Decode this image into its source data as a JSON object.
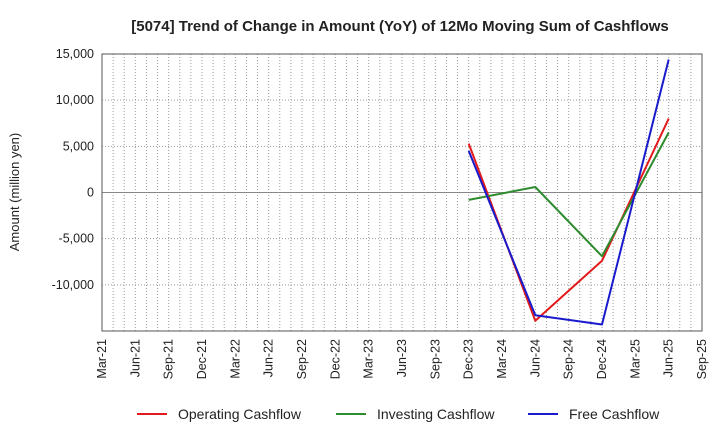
{
  "chart_data": {
    "type": "line",
    "title": "[5074]  Trend of Change in Amount (YoY) of 12Mo Moving Sum of Cashflows",
    "xlabel": "",
    "ylabel": "Amount (million yen)",
    "ylim": [
      -15000,
      15000
    ],
    "yticks": [
      15000,
      10000,
      5000,
      0,
      -5000,
      -10000
    ],
    "ytick_labels": [
      "15,000",
      "10,000",
      "5,000",
      "0",
      "-5,000",
      "-10,000"
    ],
    "categories": [
      "Mar-21",
      "Jun-21",
      "Sep-21",
      "Dec-21",
      "Mar-22",
      "Jun-22",
      "Sep-22",
      "Dec-22",
      "Mar-23",
      "Jun-23",
      "Sep-23",
      "Dec-23",
      "Mar-24",
      "Jun-24",
      "Sep-24",
      "Dec-24",
      "Mar-25",
      "Jun-25",
      "Sep-25"
    ],
    "grid": true,
    "legend_position": "bottom",
    "series": [
      {
        "name": "Operating Cashflow",
        "color": "#e31a1c",
        "points": [
          [
            "Dec-23",
            5300
          ],
          [
            "Jun-24",
            -13900
          ],
          [
            "Dec-24",
            -7400
          ],
          [
            "Jun-25",
            8000
          ]
        ]
      },
      {
        "name": "Investing Cashflow",
        "color": "#2e8b2e",
        "points": [
          [
            "Dec-23",
            -800
          ],
          [
            "Jun-24",
            600
          ],
          [
            "Dec-24",
            -6900
          ],
          [
            "Jun-25",
            6500
          ]
        ]
      },
      {
        "name": "Free Cashflow",
        "color": "#1a1acd",
        "points": [
          [
            "Dec-23",
            4500
          ],
          [
            "Jun-24",
            -13300
          ],
          [
            "Dec-24",
            -14300
          ],
          [
            "Jun-25",
            14400
          ]
        ]
      }
    ]
  }
}
